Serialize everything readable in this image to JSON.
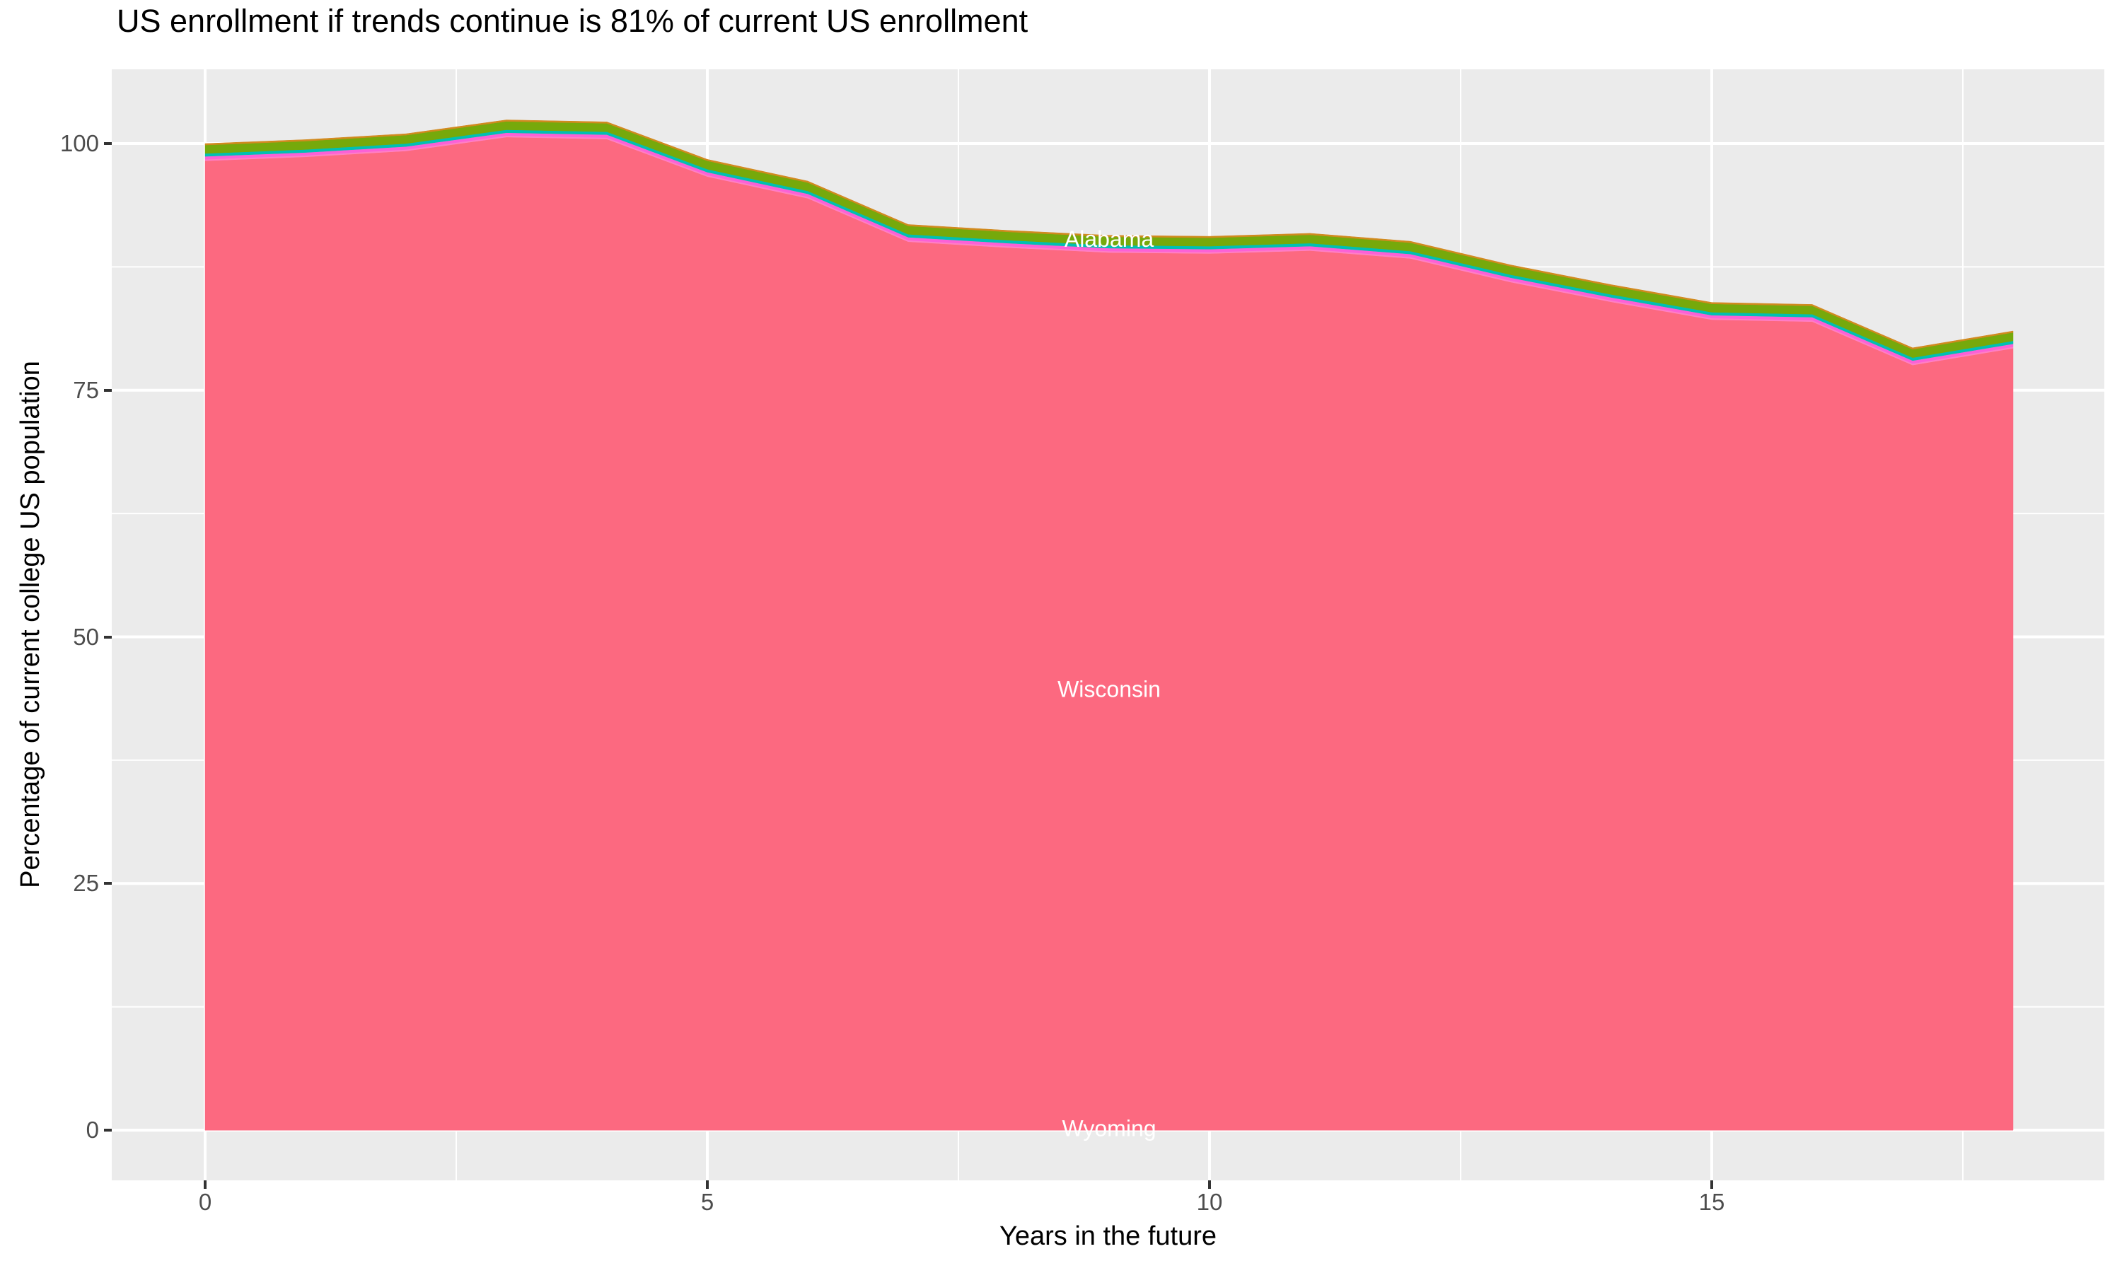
{
  "chart_data": {
    "type": "area",
    "stacked": true,
    "title": "US enrollment if trends continue is 81% of current US enrollment",
    "x_label": "Years in the future",
    "y_label": "Percentage of current college US population",
    "x": [
      0,
      1,
      2,
      3,
      4,
      5,
      6,
      7,
      8,
      9,
      10,
      11,
      12,
      13,
      14,
      15,
      16,
      17,
      18
    ],
    "x_ticks": [
      0,
      5,
      10,
      15
    ],
    "y_ticks": [
      0,
      25,
      50,
      75,
      100
    ],
    "x_minor_ticks": [
      2.5,
      7.5,
      12.5,
      17.5
    ],
    "y_minor_ticks": [
      12.5,
      37.5,
      62.5,
      87.5
    ],
    "x_range": [
      -0.9,
      18.9
    ],
    "y_range": [
      -5.1,
      107.6
    ],
    "grid": "on",
    "legend": "none",
    "stack_top_total": [
      100.0,
      100.4,
      101.0,
      102.4,
      102.2,
      98.4,
      96.2,
      91.8,
      91.2,
      90.7,
      90.6,
      90.9,
      90.1,
      87.7,
      85.7,
      83.9,
      83.7,
      79.3,
      81.0
    ],
    "series": [
      {
        "name": "Wyoming",
        "color": "#FC6980",
        "thickness": 0,
        "values": [
          0,
          0,
          0,
          0,
          0,
          0,
          0,
          0,
          0,
          0,
          0,
          0,
          0,
          0,
          0,
          0,
          0,
          0,
          0
        ]
      },
      {
        "name": "Wisconsin",
        "color": "#FC6980",
        "values": [
          98.25,
          98.65,
          99.25,
          100.65,
          100.45,
          96.65,
          94.45,
          90.05,
          89.45,
          88.95,
          88.85,
          89.15,
          88.35,
          85.95,
          83.95,
          82.15,
          81.95,
          77.55,
          79.25
        ]
      },
      {
        "name": "band-pale-pink",
        "color": "#FF7FC4",
        "thickness": 0.15
      },
      {
        "name": "band-magenta",
        "color": "#FB61D7",
        "thickness": 0.3
      },
      {
        "name": "band-teal",
        "color": "#00C0B2",
        "thickness": 0.3
      },
      {
        "name": "Alabama",
        "color": "#76A90B",
        "thickness": 0.85
      },
      {
        "name": "band-orange",
        "color": "#D18A1E",
        "thickness": 0.15
      }
    ],
    "annotations": [
      {
        "text": "Alabama",
        "x": 9,
        "y": 90.15,
        "color": "#FFFFFF"
      },
      {
        "text": "Wisconsin",
        "x": 9,
        "y": 44.5,
        "color": "#FFFFFF"
      },
      {
        "text": "Wyoming",
        "x": 9,
        "y": 0.0,
        "color": "#FFFFFF"
      }
    ],
    "colors": {
      "background": "#FFFFFF",
      "panel": "#EBEBEB",
      "gridline": "#FFFFFF",
      "tick_text": "#4D4D4D",
      "tick_mark": "#333333",
      "title_text": "#000000"
    }
  }
}
